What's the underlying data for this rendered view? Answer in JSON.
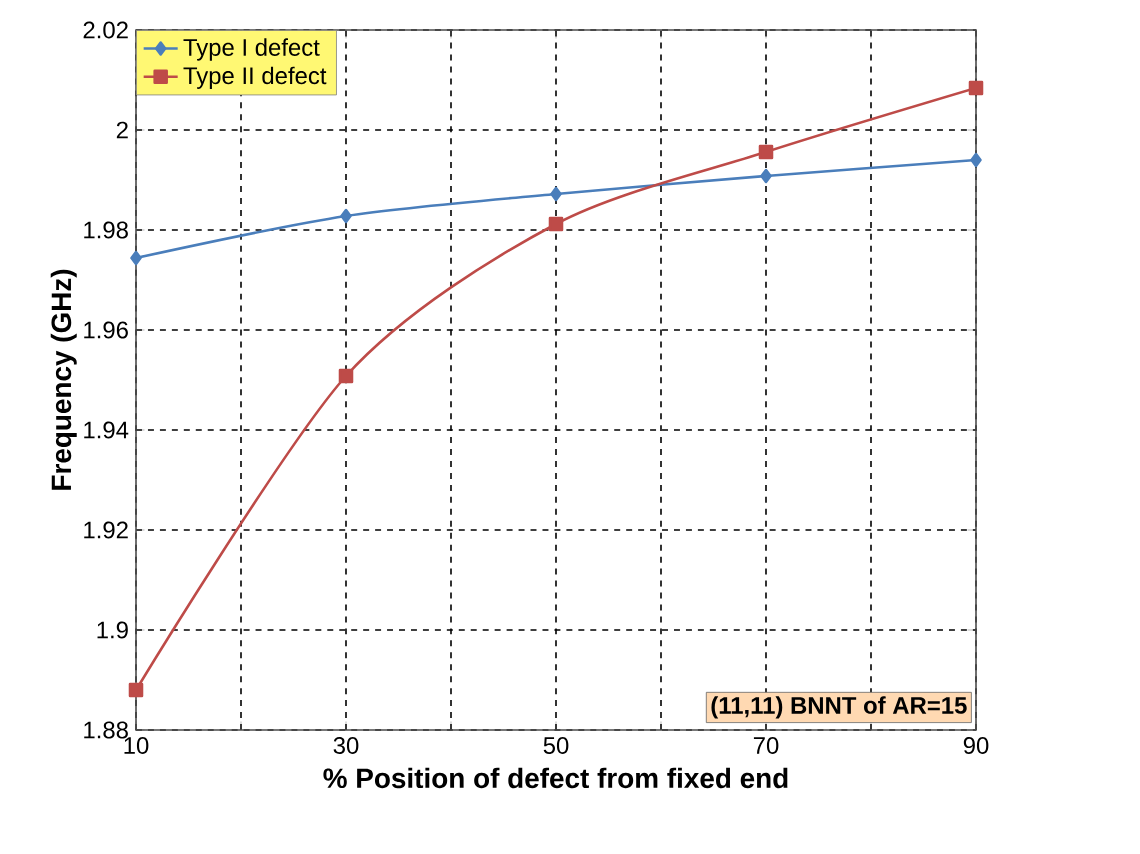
{
  "chart_data": {
    "type": "line",
    "xlabel": "% Position of defect from fixed end",
    "ylabel": "Frequency (GHz)",
    "x": [
      10,
      30,
      50,
      70,
      90
    ],
    "series": [
      {
        "name": "Type I  defect",
        "color": "#4a7ebb",
        "marker": "diamond",
        "values": [
          1.9744,
          1.9828,
          1.9872,
          1.9908,
          1.994
        ]
      },
      {
        "name": "Type II defect",
        "color": "#be4b48",
        "marker": "square",
        "values": [
          1.888,
          1.9508,
          1.9812,
          1.9956,
          2.0084
        ]
      }
    ],
    "xlim": [
      10,
      90
    ],
    "ylim": [
      1.88,
      2.02
    ],
    "xticks": [
      10,
      {
        "value": 20,
        "label": null
      },
      30,
      {
        "value": 40,
        "label": null
      },
      50,
      {
        "value": 60,
        "label": null
      },
      70,
      {
        "value": 80,
        "label": null
      },
      90
    ],
    "yticks": [
      1.88,
      1.9,
      1.92,
      1.94,
      1.96,
      1.98,
      2,
      2.02
    ],
    "grid": true,
    "legend": "top left",
    "line_style": "solid",
    "annotations": [
      "(11,11) BNNT of AR=15"
    ]
  }
}
